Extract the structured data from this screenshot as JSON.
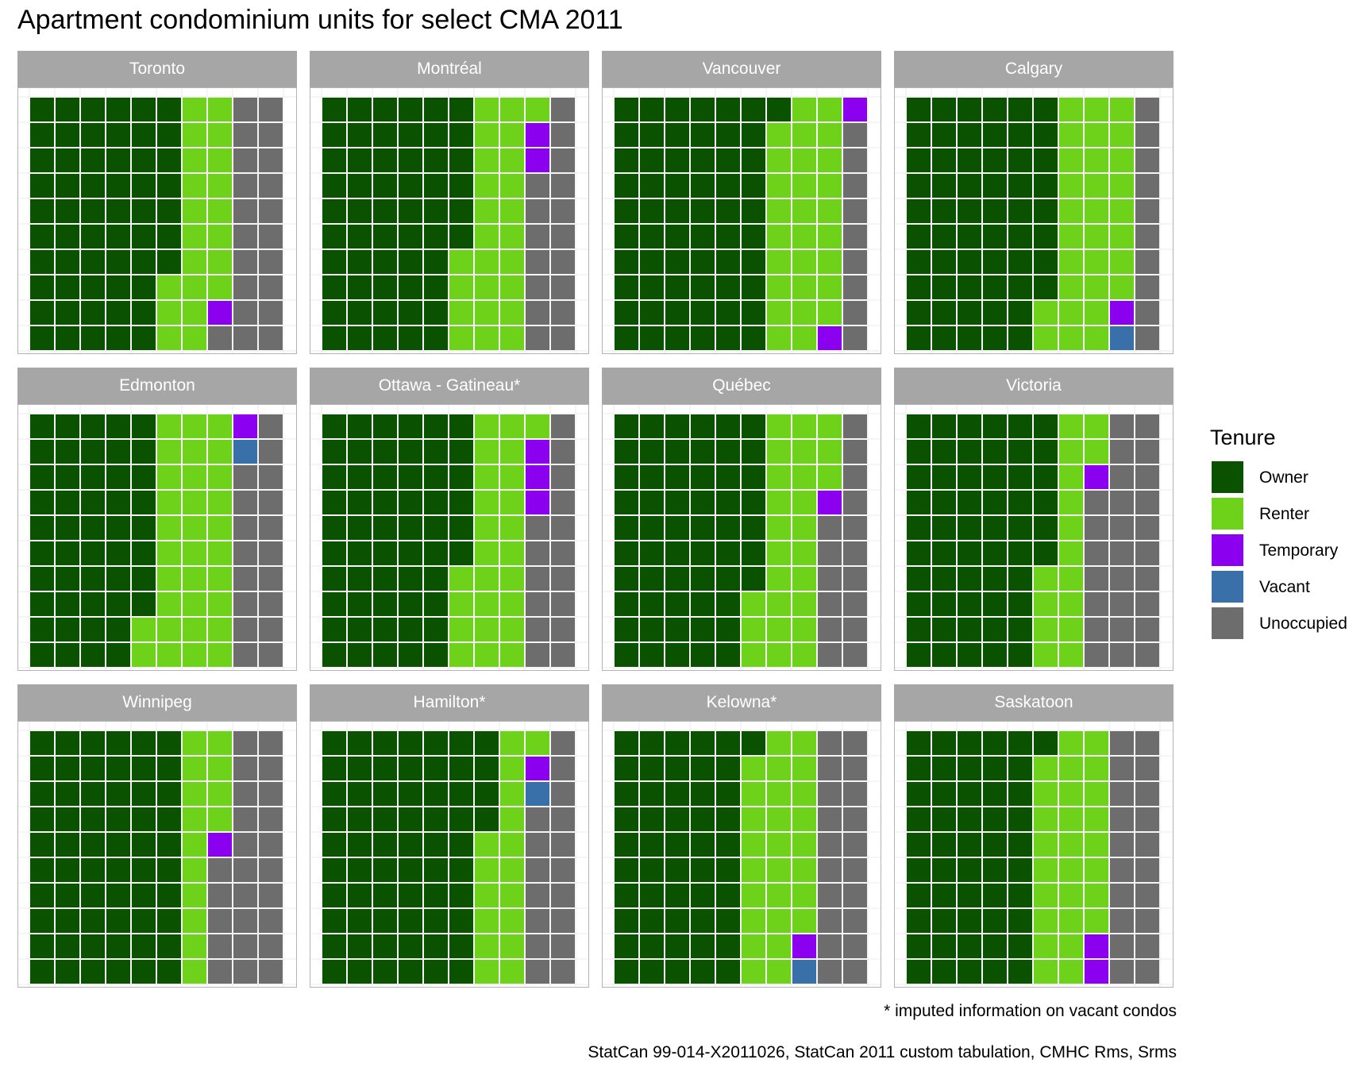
{
  "chart_data": {
    "type": "waffle",
    "title": "Apartment condominium units for select CMA 2011",
    "units_per_square_pct": 1,
    "grid": "10 x 10 squares per CMA, filled column by column",
    "legend": {
      "title": "Tenure",
      "items": [
        {
          "key": "owner",
          "label": "Owner",
          "color": "#0a5200"
        },
        {
          "key": "renter",
          "label": "Renter",
          "color": "#6fd21a"
        },
        {
          "key": "temporary",
          "label": "Temporary",
          "color": "#8b00ee"
        },
        {
          "key": "vacant",
          "label": "Vacant",
          "color": "#3a70aa"
        },
        {
          "key": "unoccupied",
          "label": "Unoccupied",
          "color": "#6d6d6d"
        }
      ]
    },
    "panels": [
      {
        "name": "Toronto",
        "values": {
          "owner": 57,
          "renter": 21,
          "temporary": 1,
          "vacant": 0,
          "unoccupied": 21
        }
      },
      {
        "name": "Montréal",
        "values": {
          "owner": 56,
          "renter": 25,
          "temporary": 2,
          "vacant": 0,
          "unoccupied": 17
        }
      },
      {
        "name": "Vancouver",
        "values": {
          "owner": 61,
          "renter": 28,
          "temporary": 2,
          "vacant": 0,
          "unoccupied": 9
        }
      },
      {
        "name": "Calgary",
        "values": {
          "owner": 58,
          "renter": 30,
          "temporary": 1,
          "vacant": 1,
          "unoccupied": 10
        }
      },
      {
        "name": "Edmonton",
        "values": {
          "owner": 48,
          "renter": 32,
          "temporary": 1,
          "vacant": 1,
          "unoccupied": 18
        }
      },
      {
        "name": "Ottawa - Gatineau*",
        "values": {
          "owner": 56,
          "renter": 25,
          "temporary": 3,
          "vacant": 0,
          "unoccupied": 16
        }
      },
      {
        "name": "Québec",
        "values": {
          "owner": 57,
          "renter": 26,
          "temporary": 1,
          "vacant": 0,
          "unoccupied": 16
        }
      },
      {
        "name": "Victoria",
        "values": {
          "owner": 56,
          "renter": 16,
          "temporary": 1,
          "vacant": 0,
          "unoccupied": 27
        }
      },
      {
        "name": "Winnipeg",
        "values": {
          "owner": 60,
          "renter": 14,
          "temporary": 1,
          "vacant": 0,
          "unoccupied": 25
        }
      },
      {
        "name": "Hamilton*",
        "values": {
          "owner": 64,
          "renter": 17,
          "temporary": 1,
          "vacant": 1,
          "unoccupied": 17
        }
      },
      {
        "name": "Kelowna*",
        "values": {
          "owner": 51,
          "renter": 27,
          "temporary": 1,
          "vacant": 1,
          "unoccupied": 20
        }
      },
      {
        "name": "Saskatoon",
        "values": {
          "owner": 51,
          "renter": 27,
          "temporary": 2,
          "vacant": 0,
          "unoccupied": 20
        }
      }
    ],
    "annotation": "* imputed information on vacant condos",
    "source": "StatCan 99-014-X2011026, StatCan 2011 custom tabulation, CMHC Rms, Srms"
  }
}
